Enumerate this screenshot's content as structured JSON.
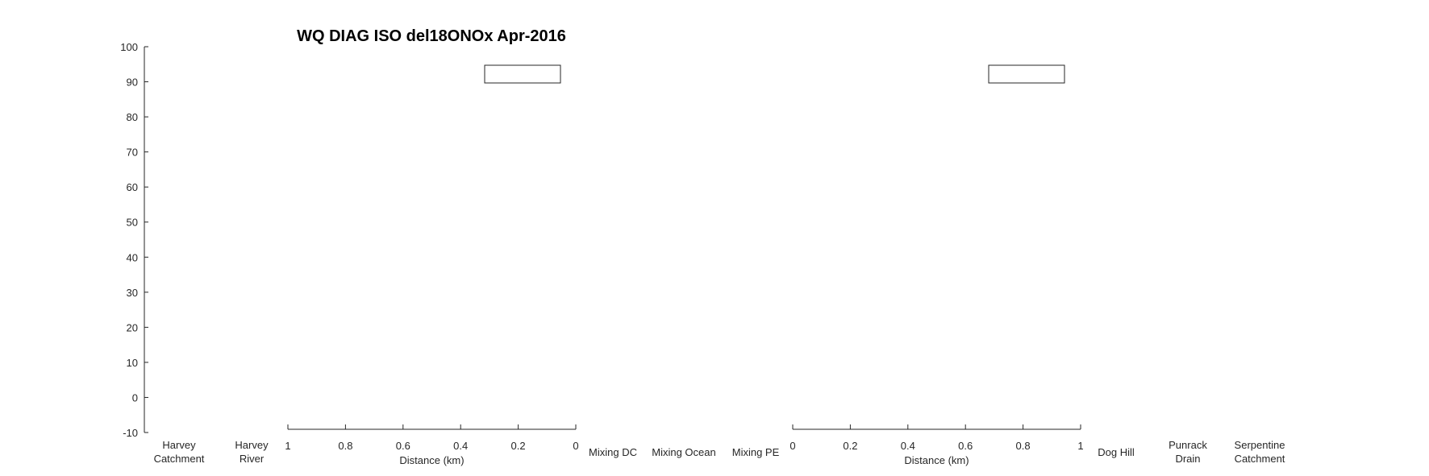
{
  "chart_data": {
    "type": "scatter",
    "title": "WQ DIAG ISO del18ONOx Apr-2016",
    "y_axis": {
      "ylim": [
        -10,
        100
      ],
      "ticks": [
        100,
        90,
        80,
        70,
        60,
        50,
        40,
        30,
        20,
        10,
        0,
        -10
      ]
    },
    "categories": [
      [
        "Harvey",
        "Catchment"
      ],
      [
        "Harvey",
        "River"
      ],
      [
        "Mixing DC"
      ],
      [
        "Mixing Ocean"
      ],
      [
        "Mixing PE"
      ],
      [
        "Dog Hill"
      ],
      [
        "Punrack",
        "Drain"
      ],
      [
        "Serpentine",
        "Catchment"
      ]
    ],
    "distance_axes": [
      {
        "xlabel": "Distance (km)",
        "xlim": [
          1,
          0
        ],
        "ticks": [
          "1",
          "0.8",
          "0.6",
          "0.4",
          "0.2",
          "0"
        ],
        "legend": {
          "placement": "top-right",
          "entries": []
        }
      },
      {
        "xlabel": "Distance (km)",
        "xlim": [
          0,
          1
        ],
        "ticks": [
          "0",
          "0.2",
          "0.4",
          "0.6",
          "0.8",
          "1"
        ],
        "legend": {
          "placement": "top-right",
          "entries": []
        }
      }
    ],
    "series": [],
    "grid": false,
    "colors": {
      "axis": "#262626",
      "background": "#ffffff"
    }
  }
}
